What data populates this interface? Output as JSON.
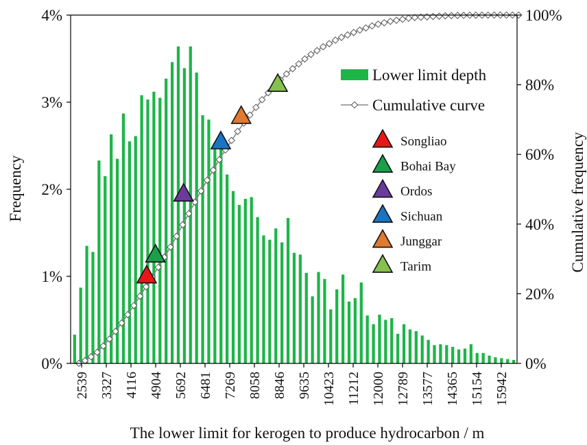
{
  "chart_data": {
    "type": "bar",
    "title": "",
    "xlabel": "The lower limit for kerogen to produce hydrocarbon / m",
    "ylabel": "Frequency",
    "y2label": "Cumulative frequency",
    "x_tick_labels": [
      "2539",
      "3327",
      "4116",
      "4904",
      "5692",
      "6481",
      "7269",
      "8058",
      "8846",
      "9635",
      "10423",
      "11212",
      "12000",
      "12789",
      "13577",
      "14365",
      "15154",
      "15942"
    ],
    "y_tick_labels": [
      "0%",
      "1%",
      "2%",
      "3%",
      "4%"
    ],
    "y2_tick_labels": [
      "0%",
      "20%",
      "40%",
      "60%",
      "80%",
      "100%"
    ],
    "ylim": [
      0,
      4
    ],
    "y2lim": [
      0,
      100
    ],
    "x_range": [
      2539,
      16336
    ],
    "bin_start": 2539,
    "bin_width": 197.1,
    "grid": false,
    "legend_placement": "upper right",
    "series": [
      {
        "name": "Lower limit depth",
        "type": "bar",
        "axis": "left",
        "unit": "%",
        "color": "#1db548",
        "values": [
          0.33,
          0.87,
          1.35,
          1.28,
          2.33,
          2.15,
          2.63,
          2.35,
          2.87,
          2.55,
          2.61,
          3.08,
          3.03,
          3.12,
          3.05,
          3.27,
          3.46,
          3.64,
          3.39,
          3.64,
          3.34,
          2.85,
          2.8,
          2.53,
          2.49,
          2.17,
          1.98,
          1.82,
          1.89,
          1.91,
          1.68,
          1.47,
          1.42,
          1.55,
          1.39,
          1.67,
          1.27,
          1.25,
          1.04,
          0.77,
          1.05,
          0.97,
          0.62,
          0.85,
          1.02,
          0.71,
          0.75,
          0.93,
          0.55,
          0.45,
          0.56,
          0.5,
          0.52,
          0.34,
          0.45,
          0.39,
          0.37,
          0.32,
          0.27,
          0.21,
          0.22,
          0.21,
          0.19,
          0.16,
          0.17,
          0.22,
          0.12,
          0.12,
          0.09,
          0.07,
          0.06,
          0.05,
          0.04
        ]
      },
      {
        "name": "Cumulative curve",
        "type": "line",
        "axis": "right",
        "unit": "%",
        "color": "#888888",
        "marker": "diamond",
        "values": [
          0.0,
          0.8,
          1.9,
          3.2,
          5.0,
          7.0,
          9.2,
          11.6,
          14.0,
          16.6,
          19.3,
          22.0,
          24.8,
          27.6,
          30.5,
          33.4,
          36.5,
          39.8,
          43.0,
          46.3,
          49.5,
          52.6,
          55.5,
          58.5,
          61.3,
          64.0,
          66.6,
          69.0,
          71.3,
          73.5,
          75.7,
          77.7,
          79.6,
          81.4,
          83.1,
          84.6,
          86.0,
          87.4,
          88.7,
          89.8,
          90.9,
          91.8,
          92.8,
          93.6,
          94.3,
          95.0,
          95.7,
          96.3,
          96.9,
          97.4,
          97.8,
          98.2,
          98.5,
          98.8,
          99.1,
          99.3,
          99.4,
          99.5,
          99.6,
          99.7,
          99.8,
          99.85,
          99.9,
          99.93,
          99.95,
          99.97,
          99.98,
          99.99,
          100.0,
          100.0,
          100.0,
          100.0,
          100.0
        ]
      }
    ],
    "basins": [
      {
        "name": "Songliao",
        "color": "#e8161a",
        "depth": 4890,
        "cumulative": 25.0
      },
      {
        "name": "Bohai Bay",
        "color": "#1aa04b",
        "depth": 5160,
        "cumulative": 31.0
      },
      {
        "name": "Ordos",
        "color": "#6a3b9c",
        "depth": 6030,
        "cumulative": 48.5
      },
      {
        "name": "Sichuan",
        "color": "#1a74c2",
        "depth": 7180,
        "cumulative": 63.5
      },
      {
        "name": "Junggar",
        "color": "#e07a2e",
        "depth": 7810,
        "cumulative": 70.8
      },
      {
        "name": "Tarim",
        "color": "#86c04e",
        "depth": 8940,
        "cumulative": 80.0
      }
    ]
  }
}
